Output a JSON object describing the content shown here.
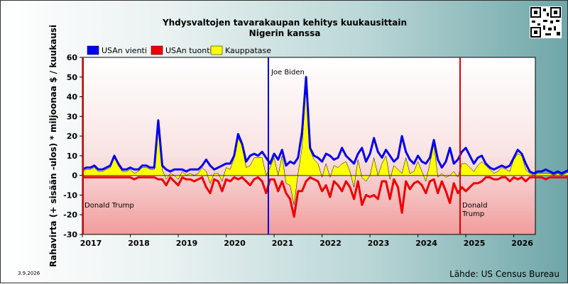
{
  "qr_icon": "qr-code-icon",
  "colors": {
    "export": "#0000ee",
    "import": "#ee0000",
    "balance": "#ffff00",
    "biden_line": "#0000dd",
    "trump_line": "#dd0000"
  },
  "footer": {
    "date": "3.9.2026",
    "source": "Lähde: US Census Bureau"
  },
  "chart_data": {
    "type": "line",
    "title": "Yhdysvaltojen tavarakaupan kehitys kuukausittain",
    "subtitle": "Nigerin kanssa",
    "ylabel": "Rahavirta (+ sisään -ulos)  * miljoonaa $ / kuukausi",
    "xlabel": "",
    "ylim": [
      -30,
      60
    ],
    "yticks": [
      -30,
      -20,
      -10,
      0,
      10,
      20,
      30,
      40,
      50,
      60
    ],
    "xlim": [
      2017.0,
      2026.45
    ],
    "xticks": [
      "2017",
      "2018",
      "2019",
      "2020",
      "2021",
      "2022",
      "2023",
      "2024",
      "2025",
      "2026"
    ],
    "grid": false,
    "legend": {
      "position": "top-left",
      "items": [
        "USAn vienti",
        "USAn tuonti",
        "Kauppatase"
      ]
    },
    "annotations": [
      {
        "label": "Donald Trump",
        "x": 2017.0
      },
      {
        "label": "Joe Biden",
        "x": 2020.88
      },
      {
        "label": "Donald Trump",
        "x": 2024.88
      }
    ],
    "x_start_month": "2017-01",
    "series": [
      {
        "name": "USAn vienti",
        "values": [
          3,
          4,
          4,
          5,
          3,
          3,
          4,
          5,
          10,
          6,
          3,
          3,
          4,
          3,
          3,
          5,
          5,
          4,
          4,
          28,
          5,
          3,
          2,
          3,
          3,
          3,
          2,
          3,
          3,
          3,
          5,
          8,
          5,
          3,
          4,
          5,
          6,
          6,
          10,
          21,
          16,
          7,
          10,
          11,
          10,
          12,
          9,
          6,
          11,
          8,
          13,
          5,
          7,
          6,
          9,
          22,
          50,
          14,
          10,
          9,
          7,
          11,
          10,
          8,
          9,
          14,
          10,
          8,
          6,
          11,
          14,
          7,
          11,
          19,
          12,
          9,
          13,
          10,
          7,
          9,
          20,
          12,
          8,
          6,
          10,
          7,
          6,
          9,
          18,
          8,
          4,
          7,
          14,
          6,
          8,
          12,
          14,
          10,
          6,
          9,
          10,
          6,
          4,
          3,
          4,
          5,
          4,
          5,
          9,
          13,
          11,
          6,
          2,
          1,
          2,
          2,
          3,
          2,
          1,
          2,
          1,
          2,
          3,
          2,
          2,
          1,
          2,
          2,
          3,
          2,
          3,
          3,
          3,
          3,
          3,
          3,
          3,
          3,
          4,
          3,
          4,
          4,
          3,
          3,
          4,
          5
        ]
      },
      {
        "name": "USAn tuonti",
        "values": [
          -1,
          -1,
          -1,
          -1,
          -1,
          -1,
          -1,
          -1,
          -1,
          -1,
          -1,
          -1,
          -1,
          -2,
          -1,
          -1,
          -1,
          -1,
          -1,
          -2,
          -2,
          -5,
          -1,
          -3,
          -5,
          -1,
          -2,
          -2,
          -3,
          -2,
          -1,
          -6,
          -9,
          -2,
          -3,
          -8,
          -2,
          -3,
          -1,
          -2,
          -1,
          -3,
          -5,
          -2,
          -1,
          -3,
          -9,
          -2,
          -2,
          -8,
          -3,
          -9,
          -12,
          -21,
          -8,
          -8,
          -3,
          -1,
          -2,
          -3,
          -8,
          -5,
          -11,
          -3,
          -5,
          -8,
          -3,
          -6,
          -12,
          -3,
          -15,
          -10,
          -11,
          -10,
          -12,
          -3,
          -3,
          -12,
          -2,
          -6,
          -19,
          -3,
          -7,
          -4,
          -3,
          -5,
          -9,
          -3,
          -2,
          -9,
          -3,
          -8,
          -14,
          -4,
          -9,
          -6,
          -8,
          -6,
          -4,
          -4,
          -3,
          -1,
          -1,
          -2,
          -2,
          -1,
          -1,
          -3,
          -1,
          -2,
          -1,
          -3,
          -1,
          -1,
          -1,
          -1,
          -2,
          -1,
          -1,
          -1,
          -1,
          -1,
          -1,
          -1,
          -1,
          -1,
          -1,
          -1,
          -1,
          -1,
          -1,
          -1,
          -1,
          -1,
          -1,
          -1,
          -1,
          -1,
          -1,
          -1,
          -1,
          -1,
          -1,
          -1,
          -1,
          -2
        ]
      }
    ]
  }
}
